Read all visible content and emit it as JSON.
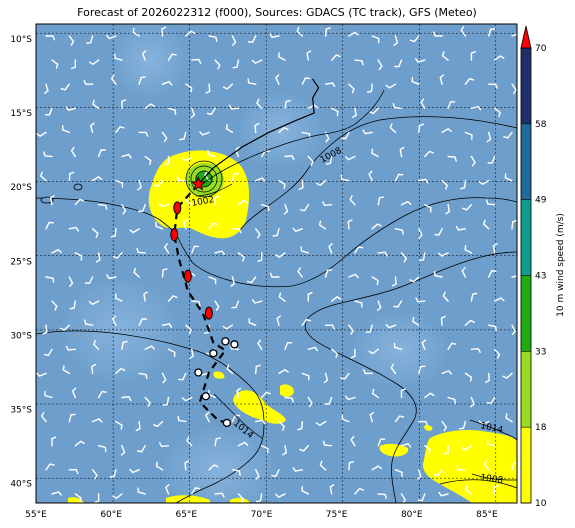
{
  "title": "Forecast of 2026022312 (f000), Sources: GDACS (TC track), GFS (Meteo)",
  "lon_ticks": [
    "55°E",
    "60°E",
    "65°E",
    "70°E",
    "75°E",
    "80°E",
    "85°E"
  ],
  "lat_ticks": [
    "10°S",
    "15°S",
    "20°S",
    "25°S",
    "30°S",
    "35°S",
    "40°S"
  ],
  "extent": {
    "lon": [
      55,
      87
    ],
    "lat": [
      -41.3,
      -9
    ]
  },
  "colorbar": {
    "label": "10 m wind speed (m/s)",
    "ticks": [
      "10",
      "18",
      "33",
      "43",
      "49",
      "58",
      "70"
    ],
    "colors": [
      "#ffff00",
      "#99dd22",
      "#22aa11",
      "#0f9b8e",
      "#1e6a9a",
      "#1f2f6a"
    ],
    "extend_color": "#ff0000"
  },
  "contour_labels": [
    "1008",
    "1002",
    "1014",
    "1014",
    "1008"
  ],
  "colors": {
    "ocean": "#6e9fcc",
    "land_line": "#000000",
    "grid": "#000000"
  },
  "track": {
    "past": [
      [
        73.4,
        -12.7
      ],
      [
        73.8,
        -13.3
      ],
      [
        73.4,
        -14.0
      ],
      [
        73.5,
        -15.0
      ],
      [
        72.3,
        -15.5
      ],
      [
        70.5,
        -16.3
      ],
      [
        68.7,
        -17.3
      ],
      [
        66.8,
        -18.7
      ],
      [
        65.8,
        -19.8
      ]
    ],
    "forecast": [
      [
        65.8,
        -19.8
      ],
      [
        64.4,
        -21.4
      ],
      [
        64.2,
        -23.2
      ],
      [
        64.5,
        -24.8
      ],
      [
        65.1,
        -27.0
      ],
      [
        66.1,
        -28.5
      ],
      [
        66.8,
        -30.5
      ],
      [
        67.6,
        -31.0
      ],
      [
        66.5,
        -32.5
      ],
      [
        65.9,
        -34.5
      ],
      [
        67.1,
        -35.7
      ],
      [
        68.0,
        -36.0
      ]
    ],
    "current": [
      65.8,
      -19.8
    ],
    "red_markers": [
      [
        64.4,
        -21.4
      ],
      [
        64.2,
        -23.2
      ],
      [
        65.1,
        -26.0
      ],
      [
        66.5,
        -28.5
      ]
    ],
    "open_markers": [
      [
        66.8,
        -31.2
      ],
      [
        67.6,
        -30.4
      ],
      [
        68.2,
        -30.6
      ],
      [
        65.8,
        -32.5
      ],
      [
        66.3,
        -34.1
      ],
      [
        67.7,
        -35.9
      ]
    ]
  }
}
